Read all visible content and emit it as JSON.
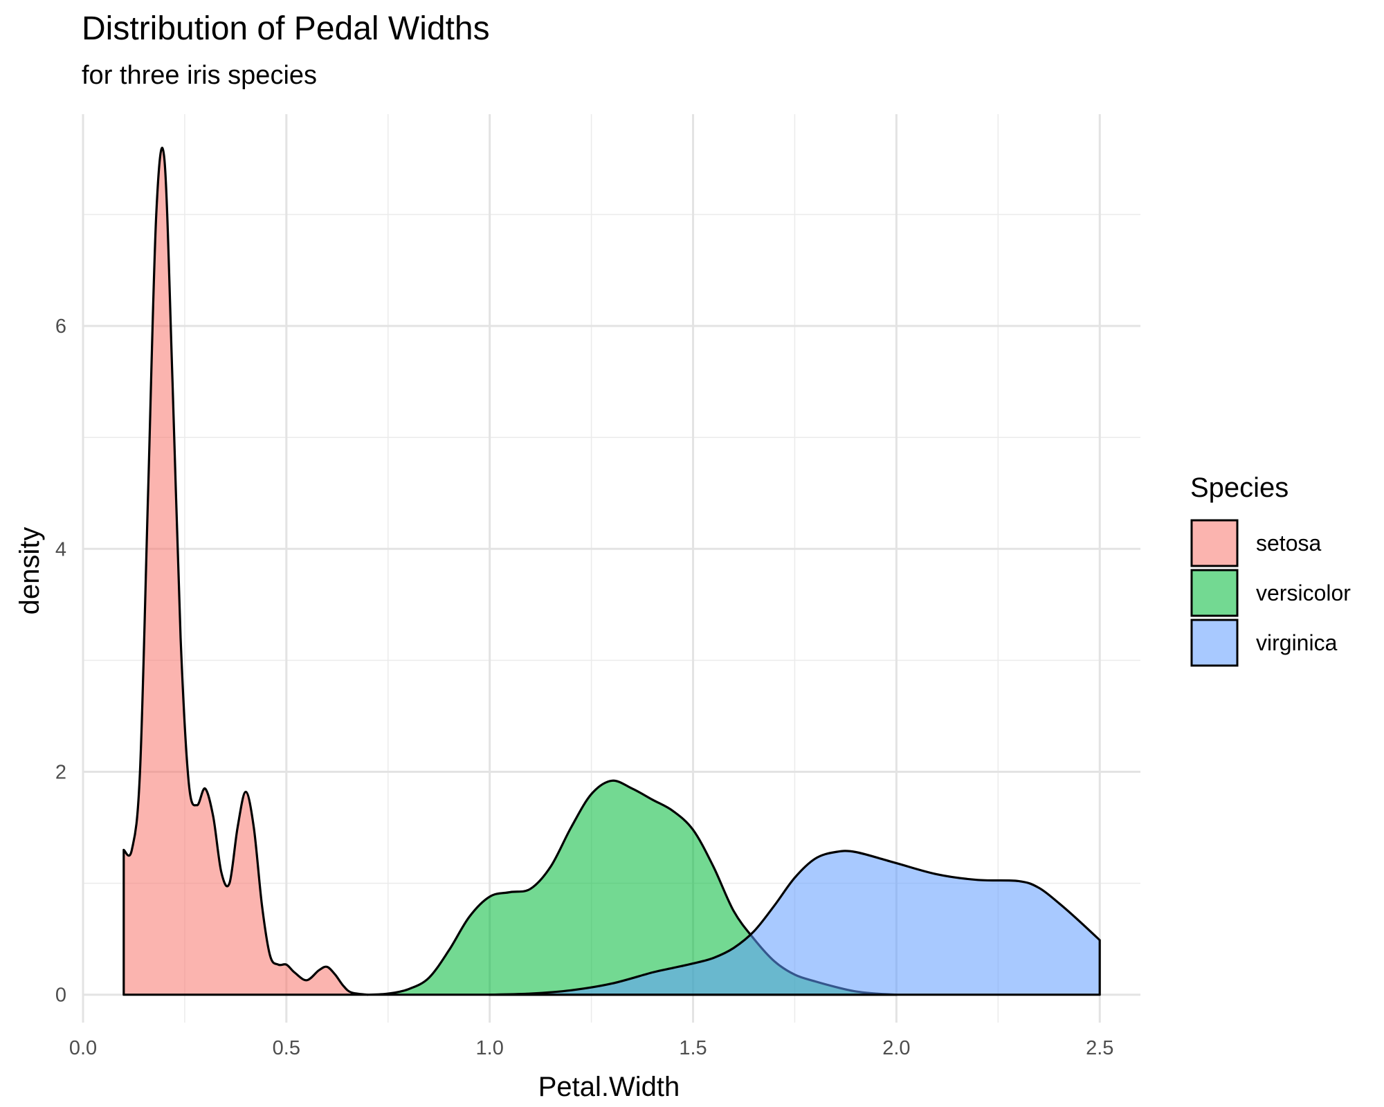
{
  "chart_data": {
    "type": "area",
    "title": "Distribution of Pedal Widths",
    "subtitle": "for three iris species",
    "xlabel": "Petal.Width",
    "ylabel": "density",
    "xlim": [
      0.0,
      2.6
    ],
    "ylim": [
      -0.25,
      7.9
    ],
    "x_ticks": [
      0.0,
      0.5,
      1.0,
      1.5,
      2.0,
      2.5
    ],
    "x_tick_labels": [
      "0.0",
      "0.5",
      "1.0",
      "1.5",
      "2.0",
      "2.5"
    ],
    "y_ticks": [
      0,
      2,
      4,
      6
    ],
    "y_tick_labels": [
      "0",
      "2",
      "4",
      "6"
    ],
    "grid": true,
    "legend": {
      "title": "Species",
      "position": "right"
    },
    "series": [
      {
        "name": "setosa",
        "color": "#F8766D",
        "x": [
          0.1,
          0.12,
          0.14,
          0.16,
          0.18,
          0.2,
          0.22,
          0.24,
          0.26,
          0.28,
          0.3,
          0.32,
          0.34,
          0.36,
          0.38,
          0.4,
          0.42,
          0.44,
          0.46,
          0.48,
          0.5,
          0.52,
          0.55,
          0.58,
          0.6,
          0.62,
          0.64,
          0.66,
          0.7
        ],
        "values": [
          1.3,
          1.3,
          2.0,
          4.5,
          7.0,
          7.5,
          5.5,
          3.2,
          1.9,
          1.7,
          1.85,
          1.6,
          1.1,
          1.0,
          1.5,
          1.82,
          1.5,
          0.8,
          0.35,
          0.27,
          0.27,
          0.2,
          0.13,
          0.22,
          0.25,
          0.18,
          0.08,
          0.02,
          0.0
        ]
      },
      {
        "name": "versicolor",
        "color": "#00BA38",
        "x": [
          0.7,
          0.75,
          0.8,
          0.85,
          0.9,
          0.95,
          1.0,
          1.05,
          1.1,
          1.15,
          1.2,
          1.25,
          1.3,
          1.35,
          1.4,
          1.45,
          1.5,
          1.55,
          1.6,
          1.65,
          1.7,
          1.75,
          1.8,
          1.85,
          1.9,
          1.95,
          2.0
        ],
        "values": [
          0.0,
          0.01,
          0.05,
          0.15,
          0.4,
          0.7,
          0.88,
          0.92,
          0.95,
          1.15,
          1.5,
          1.8,
          1.92,
          1.85,
          1.75,
          1.65,
          1.48,
          1.15,
          0.75,
          0.5,
          0.3,
          0.18,
          0.12,
          0.07,
          0.03,
          0.01,
          0.0
        ]
      },
      {
        "name": "virginica",
        "color": "#619CFF",
        "x": [
          1.0,
          1.1,
          1.2,
          1.3,
          1.4,
          1.45,
          1.5,
          1.55,
          1.6,
          1.65,
          1.7,
          1.75,
          1.8,
          1.85,
          1.9,
          2.0,
          2.1,
          2.2,
          2.3,
          2.35,
          2.4,
          2.45,
          2.5
        ],
        "values": [
          0.0,
          0.01,
          0.04,
          0.1,
          0.2,
          0.24,
          0.28,
          0.33,
          0.42,
          0.57,
          0.8,
          1.05,
          1.22,
          1.28,
          1.28,
          1.18,
          1.08,
          1.03,
          1.02,
          0.96,
          0.82,
          0.66,
          0.49
        ]
      }
    ]
  }
}
